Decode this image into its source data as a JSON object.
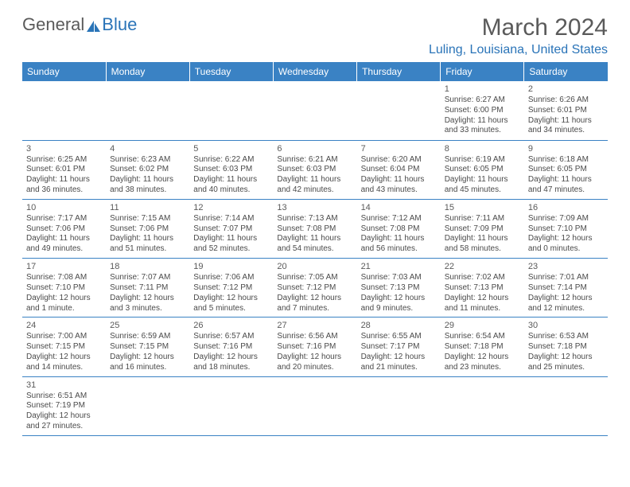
{
  "logo": {
    "text1": "General",
    "text2": "Blue"
  },
  "title": "March 2024",
  "location": "Luling, Louisiana, United States",
  "colors": {
    "header_bg": "#3a82c4",
    "header_text": "#ffffff",
    "accent": "#2a74b8",
    "body_text": "#4a4a4a",
    "border": "#3a82c4",
    "background": "#ffffff"
  },
  "table": {
    "columns": [
      "Sunday",
      "Monday",
      "Tuesday",
      "Wednesday",
      "Thursday",
      "Friday",
      "Saturday"
    ],
    "weeks": [
      [
        null,
        null,
        null,
        null,
        null,
        {
          "d": "1",
          "sr": "Sunrise: 6:27 AM",
          "ss": "Sunset: 6:00 PM",
          "dl1": "Daylight: 11 hours",
          "dl2": "and 33 minutes."
        },
        {
          "d": "2",
          "sr": "Sunrise: 6:26 AM",
          "ss": "Sunset: 6:01 PM",
          "dl1": "Daylight: 11 hours",
          "dl2": "and 34 minutes."
        }
      ],
      [
        {
          "d": "3",
          "sr": "Sunrise: 6:25 AM",
          "ss": "Sunset: 6:01 PM",
          "dl1": "Daylight: 11 hours",
          "dl2": "and 36 minutes."
        },
        {
          "d": "4",
          "sr": "Sunrise: 6:23 AM",
          "ss": "Sunset: 6:02 PM",
          "dl1": "Daylight: 11 hours",
          "dl2": "and 38 minutes."
        },
        {
          "d": "5",
          "sr": "Sunrise: 6:22 AM",
          "ss": "Sunset: 6:03 PM",
          "dl1": "Daylight: 11 hours",
          "dl2": "and 40 minutes."
        },
        {
          "d": "6",
          "sr": "Sunrise: 6:21 AM",
          "ss": "Sunset: 6:03 PM",
          "dl1": "Daylight: 11 hours",
          "dl2": "and 42 minutes."
        },
        {
          "d": "7",
          "sr": "Sunrise: 6:20 AM",
          "ss": "Sunset: 6:04 PM",
          "dl1": "Daylight: 11 hours",
          "dl2": "and 43 minutes."
        },
        {
          "d": "8",
          "sr": "Sunrise: 6:19 AM",
          "ss": "Sunset: 6:05 PM",
          "dl1": "Daylight: 11 hours",
          "dl2": "and 45 minutes."
        },
        {
          "d": "9",
          "sr": "Sunrise: 6:18 AM",
          "ss": "Sunset: 6:05 PM",
          "dl1": "Daylight: 11 hours",
          "dl2": "and 47 minutes."
        }
      ],
      [
        {
          "d": "10",
          "sr": "Sunrise: 7:17 AM",
          "ss": "Sunset: 7:06 PM",
          "dl1": "Daylight: 11 hours",
          "dl2": "and 49 minutes."
        },
        {
          "d": "11",
          "sr": "Sunrise: 7:15 AM",
          "ss": "Sunset: 7:06 PM",
          "dl1": "Daylight: 11 hours",
          "dl2": "and 51 minutes."
        },
        {
          "d": "12",
          "sr": "Sunrise: 7:14 AM",
          "ss": "Sunset: 7:07 PM",
          "dl1": "Daylight: 11 hours",
          "dl2": "and 52 minutes."
        },
        {
          "d": "13",
          "sr": "Sunrise: 7:13 AM",
          "ss": "Sunset: 7:08 PM",
          "dl1": "Daylight: 11 hours",
          "dl2": "and 54 minutes."
        },
        {
          "d": "14",
          "sr": "Sunrise: 7:12 AM",
          "ss": "Sunset: 7:08 PM",
          "dl1": "Daylight: 11 hours",
          "dl2": "and 56 minutes."
        },
        {
          "d": "15",
          "sr": "Sunrise: 7:11 AM",
          "ss": "Sunset: 7:09 PM",
          "dl1": "Daylight: 11 hours",
          "dl2": "and 58 minutes."
        },
        {
          "d": "16",
          "sr": "Sunrise: 7:09 AM",
          "ss": "Sunset: 7:10 PM",
          "dl1": "Daylight: 12 hours",
          "dl2": "and 0 minutes."
        }
      ],
      [
        {
          "d": "17",
          "sr": "Sunrise: 7:08 AM",
          "ss": "Sunset: 7:10 PM",
          "dl1": "Daylight: 12 hours",
          "dl2": "and 1 minute."
        },
        {
          "d": "18",
          "sr": "Sunrise: 7:07 AM",
          "ss": "Sunset: 7:11 PM",
          "dl1": "Daylight: 12 hours",
          "dl2": "and 3 minutes."
        },
        {
          "d": "19",
          "sr": "Sunrise: 7:06 AM",
          "ss": "Sunset: 7:12 PM",
          "dl1": "Daylight: 12 hours",
          "dl2": "and 5 minutes."
        },
        {
          "d": "20",
          "sr": "Sunrise: 7:05 AM",
          "ss": "Sunset: 7:12 PM",
          "dl1": "Daylight: 12 hours",
          "dl2": "and 7 minutes."
        },
        {
          "d": "21",
          "sr": "Sunrise: 7:03 AM",
          "ss": "Sunset: 7:13 PM",
          "dl1": "Daylight: 12 hours",
          "dl2": "and 9 minutes."
        },
        {
          "d": "22",
          "sr": "Sunrise: 7:02 AM",
          "ss": "Sunset: 7:13 PM",
          "dl1": "Daylight: 12 hours",
          "dl2": "and 11 minutes."
        },
        {
          "d": "23",
          "sr": "Sunrise: 7:01 AM",
          "ss": "Sunset: 7:14 PM",
          "dl1": "Daylight: 12 hours",
          "dl2": "and 12 minutes."
        }
      ],
      [
        {
          "d": "24",
          "sr": "Sunrise: 7:00 AM",
          "ss": "Sunset: 7:15 PM",
          "dl1": "Daylight: 12 hours",
          "dl2": "and 14 minutes."
        },
        {
          "d": "25",
          "sr": "Sunrise: 6:59 AM",
          "ss": "Sunset: 7:15 PM",
          "dl1": "Daylight: 12 hours",
          "dl2": "and 16 minutes."
        },
        {
          "d": "26",
          "sr": "Sunrise: 6:57 AM",
          "ss": "Sunset: 7:16 PM",
          "dl1": "Daylight: 12 hours",
          "dl2": "and 18 minutes."
        },
        {
          "d": "27",
          "sr": "Sunrise: 6:56 AM",
          "ss": "Sunset: 7:16 PM",
          "dl1": "Daylight: 12 hours",
          "dl2": "and 20 minutes."
        },
        {
          "d": "28",
          "sr": "Sunrise: 6:55 AM",
          "ss": "Sunset: 7:17 PM",
          "dl1": "Daylight: 12 hours",
          "dl2": "and 21 minutes."
        },
        {
          "d": "29",
          "sr": "Sunrise: 6:54 AM",
          "ss": "Sunset: 7:18 PM",
          "dl1": "Daylight: 12 hours",
          "dl2": "and 23 minutes."
        },
        {
          "d": "30",
          "sr": "Sunrise: 6:53 AM",
          "ss": "Sunset: 7:18 PM",
          "dl1": "Daylight: 12 hours",
          "dl2": "and 25 minutes."
        }
      ],
      [
        {
          "d": "31",
          "sr": "Sunrise: 6:51 AM",
          "ss": "Sunset: 7:19 PM",
          "dl1": "Daylight: 12 hours",
          "dl2": "and 27 minutes."
        },
        null,
        null,
        null,
        null,
        null,
        null
      ]
    ]
  }
}
